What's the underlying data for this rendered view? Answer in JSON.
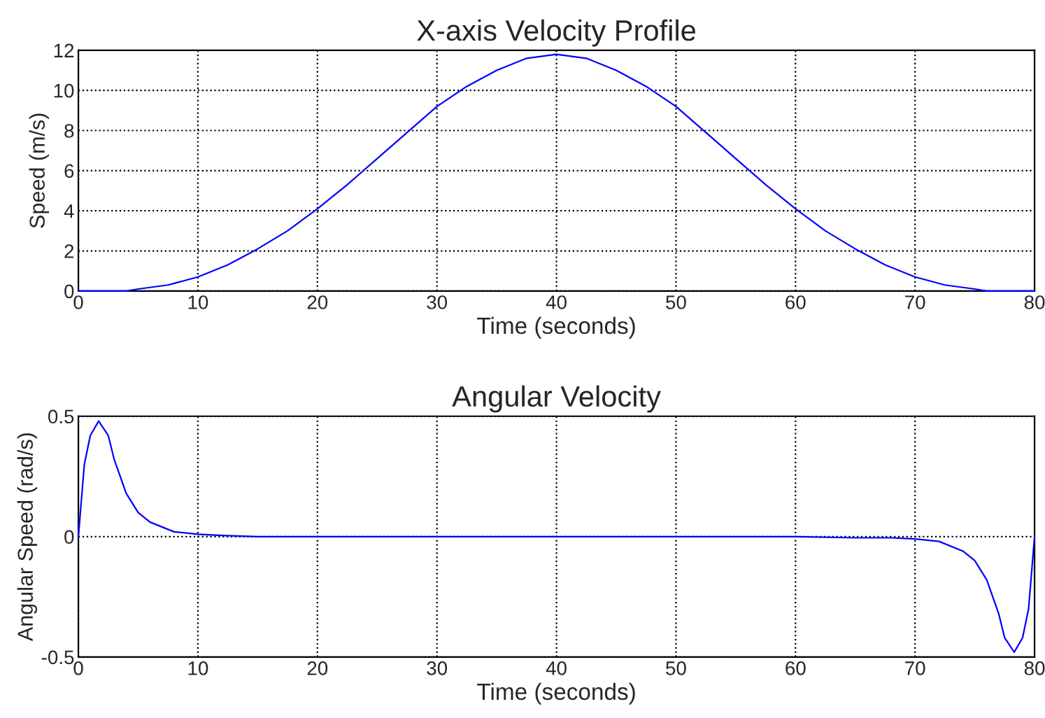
{
  "chart_data": [
    {
      "type": "line",
      "title": "X-axis Velocity Profile",
      "xlabel": "Time (seconds)",
      "ylabel": "Speed (m/s)",
      "xlim": [
        0,
        80
      ],
      "ylim": [
        0,
        12
      ],
      "xticks": [
        0,
        10,
        20,
        30,
        40,
        50,
        60,
        70,
        80
      ],
      "yticks": [
        0,
        2,
        4,
        6,
        8,
        10,
        12
      ],
      "grid": true,
      "line_style": "solid",
      "series": [
        {
          "color": "#0000ff",
          "x": [
            0,
            2,
            4,
            5,
            7.5,
            10,
            12.5,
            15,
            17.5,
            20,
            22.5,
            25,
            27.5,
            30,
            32.5,
            35,
            37.5,
            40,
            42.5,
            45,
            47.5,
            50,
            52.5,
            55,
            57.5,
            60,
            62.5,
            65,
            67.5,
            70,
            72.5,
            75,
            76,
            78,
            80
          ],
          "values": [
            0,
            0,
            0,
            0.1,
            0.3,
            0.7,
            1.3,
            2.1,
            3.0,
            4.1,
            5.3,
            6.6,
            7.9,
            9.2,
            10.2,
            11.0,
            11.6,
            11.8,
            11.6,
            11.0,
            10.2,
            9.2,
            7.9,
            6.6,
            5.3,
            4.1,
            3.0,
            2.1,
            1.3,
            0.7,
            0.3,
            0.1,
            0,
            0,
            0
          ]
        }
      ]
    },
    {
      "type": "line",
      "title": "Angular Velocity",
      "xlabel": "Time (seconds)",
      "ylabel": "Angular Speed (rad/s)",
      "xlim": [
        0,
        80
      ],
      "ylim": [
        -0.5,
        0.5
      ],
      "xticks": [
        0,
        10,
        20,
        30,
        40,
        50,
        60,
        70,
        80
      ],
      "yticks": [
        -0.5,
        0,
        0.5
      ],
      "grid": true,
      "line_style": "solid",
      "series": [
        {
          "color": "#0000ff",
          "x": [
            0,
            0.5,
            1,
            1.7,
            2.5,
            3,
            4,
            5,
            6,
            8,
            10,
            12,
            15,
            20,
            30,
            40,
            50,
            60,
            65,
            68,
            70,
            72,
            74,
            75,
            76,
            77,
            77.5,
            78.3,
            79,
            79.5,
            80
          ],
          "values": [
            0,
            0.3,
            0.42,
            0.48,
            0.42,
            0.32,
            0.18,
            0.1,
            0.06,
            0.02,
            0.01,
            0.005,
            0,
            0,
            0,
            0,
            0,
            0,
            -0.005,
            -0.005,
            -0.01,
            -0.02,
            -0.06,
            -0.1,
            -0.18,
            -0.32,
            -0.42,
            -0.48,
            -0.42,
            -0.3,
            0
          ]
        }
      ]
    }
  ]
}
